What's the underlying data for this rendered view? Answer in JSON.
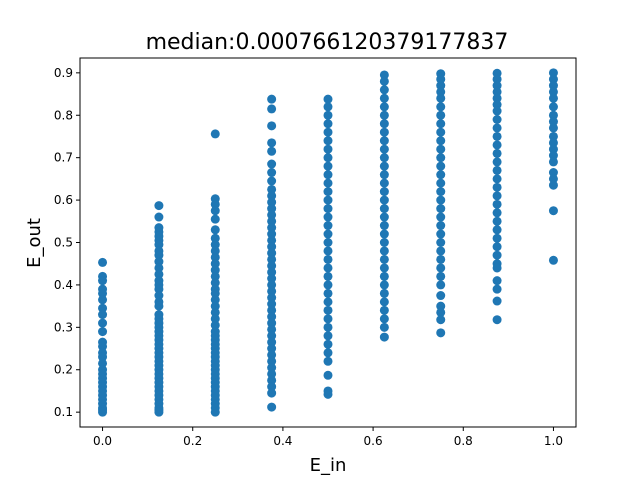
{
  "chart_data": {
    "type": "scatter",
    "title": "median:0.000766120379177837",
    "xlabel": "E_in",
    "ylabel": "E_out",
    "xlim": [
      -0.05,
      1.05
    ],
    "ylim": [
      0.065,
      0.935
    ],
    "xticks": [
      0.0,
      0.2,
      0.4,
      0.6,
      0.8,
      1.0
    ],
    "xtick_labels": [
      "0.0",
      "0.2",
      "0.4",
      "0.6",
      "0.8",
      "1.0"
    ],
    "yticks": [
      0.1,
      0.2,
      0.3,
      0.4,
      0.5,
      0.6,
      0.7,
      0.8,
      0.9
    ],
    "ytick_labels": [
      "0.1",
      "0.2",
      "0.3",
      "0.4",
      "0.5",
      "0.6",
      "0.7",
      "0.8",
      "0.9"
    ],
    "marker_color": "#1f77b4",
    "series": [
      {
        "x": 0.0,
        "y": [
          0.453,
          0.42,
          0.41,
          0.39,
          0.38,
          0.365,
          0.345,
          0.33,
          0.31,
          0.29,
          0.265,
          0.255,
          0.24,
          0.23,
          0.215,
          0.2,
          0.19,
          0.18,
          0.17,
          0.16,
          0.15,
          0.14,
          0.13,
          0.12,
          0.11,
          0.105,
          0.1
        ]
      },
      {
        "x": 0.125,
        "y": [
          0.587,
          0.56,
          0.535,
          0.525,
          0.515,
          0.505,
          0.495,
          0.48,
          0.47,
          0.455,
          0.44,
          0.425,
          0.41,
          0.4,
          0.39,
          0.375,
          0.36,
          0.35,
          0.33,
          0.32,
          0.31,
          0.3,
          0.29,
          0.28,
          0.27,
          0.26,
          0.25,
          0.24,
          0.23,
          0.22,
          0.21,
          0.2,
          0.19,
          0.18,
          0.17,
          0.16,
          0.15,
          0.14,
          0.13,
          0.12,
          0.11,
          0.105,
          0.1
        ]
      },
      {
        "x": 0.25,
        "y": [
          0.756,
          0.603,
          0.59,
          0.575,
          0.555,
          0.53,
          0.51,
          0.495,
          0.48,
          0.465,
          0.45,
          0.435,
          0.42,
          0.405,
          0.39,
          0.38,
          0.365,
          0.35,
          0.335,
          0.32,
          0.305,
          0.29,
          0.28,
          0.27,
          0.26,
          0.25,
          0.24,
          0.23,
          0.22,
          0.21,
          0.2,
          0.19,
          0.18,
          0.17,
          0.16,
          0.15,
          0.14,
          0.13,
          0.12,
          0.11,
          0.1
        ]
      },
      {
        "x": 0.375,
        "y": [
          0.838,
          0.815,
          0.775,
          0.735,
          0.715,
          0.685,
          0.665,
          0.645,
          0.625,
          0.61,
          0.595,
          0.58,
          0.565,
          0.55,
          0.535,
          0.52,
          0.505,
          0.49,
          0.475,
          0.46,
          0.445,
          0.43,
          0.415,
          0.4,
          0.385,
          0.37,
          0.355,
          0.34,
          0.325,
          0.31,
          0.295,
          0.28,
          0.265,
          0.25,
          0.235,
          0.22,
          0.205,
          0.19,
          0.175,
          0.16,
          0.145,
          0.112
        ]
      },
      {
        "x": 0.5,
        "y": [
          0.838,
          0.82,
          0.8,
          0.78,
          0.76,
          0.74,
          0.72,
          0.7,
          0.68,
          0.66,
          0.64,
          0.62,
          0.6,
          0.58,
          0.56,
          0.54,
          0.52,
          0.5,
          0.48,
          0.46,
          0.44,
          0.42,
          0.4,
          0.38,
          0.36,
          0.34,
          0.32,
          0.3,
          0.28,
          0.26,
          0.24,
          0.22,
          0.187,
          0.15,
          0.142
        ]
      },
      {
        "x": 0.625,
        "y": [
          0.895,
          0.88,
          0.86,
          0.84,
          0.82,
          0.8,
          0.78,
          0.76,
          0.74,
          0.72,
          0.7,
          0.68,
          0.66,
          0.64,
          0.62,
          0.6,
          0.58,
          0.56,
          0.54,
          0.52,
          0.5,
          0.48,
          0.46,
          0.44,
          0.42,
          0.4,
          0.38,
          0.36,
          0.34,
          0.32,
          0.3,
          0.277
        ]
      },
      {
        "x": 0.75,
        "y": [
          0.898,
          0.885,
          0.87,
          0.855,
          0.84,
          0.82,
          0.8,
          0.78,
          0.76,
          0.74,
          0.72,
          0.7,
          0.68,
          0.66,
          0.64,
          0.62,
          0.6,
          0.58,
          0.56,
          0.54,
          0.52,
          0.5,
          0.48,
          0.46,
          0.44,
          0.42,
          0.4,
          0.375,
          0.35,
          0.335,
          0.318,
          0.287
        ]
      },
      {
        "x": 0.875,
        "y": [
          0.899,
          0.885,
          0.87,
          0.855,
          0.84,
          0.825,
          0.81,
          0.79,
          0.77,
          0.75,
          0.73,
          0.71,
          0.69,
          0.67,
          0.65,
          0.63,
          0.61,
          0.59,
          0.57,
          0.55,
          0.53,
          0.51,
          0.49,
          0.47,
          0.45,
          0.44,
          0.41,
          0.39,
          0.362,
          0.318
        ]
      },
      {
        "x": 1.0,
        "y": [
          0.9,
          0.885,
          0.87,
          0.855,
          0.84,
          0.82,
          0.8,
          0.785,
          0.77,
          0.75,
          0.735,
          0.72,
          0.705,
          0.69,
          0.665,
          0.65,
          0.635,
          0.575,
          0.458
        ]
      }
    ]
  }
}
